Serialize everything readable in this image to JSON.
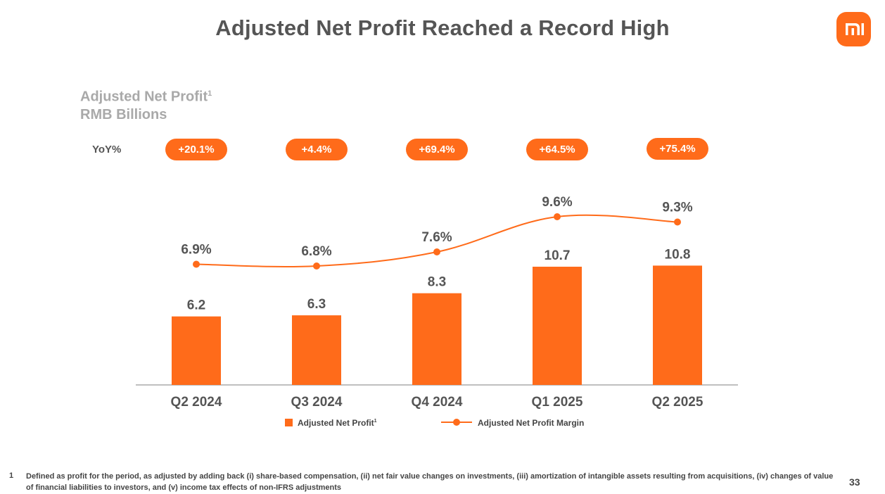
{
  "title": "Adjusted Net Profit Reached a Record High",
  "logo_text": "mi",
  "subtitle": {
    "line1": "Adjusted Net Profit",
    "line1_sup": "1",
    "line2": "RMB Billions"
  },
  "yoy_label": "YoY%",
  "colors": {
    "accent": "#ff6b1a",
    "axis": "#aaaaaa",
    "text": "#555555"
  },
  "chart_data": {
    "type": "bar",
    "title": "Adjusted Net Profit Reached a Record High",
    "ylabel": "RMB Billions",
    "categories": [
      "Q2 2024",
      "Q3 2024",
      "Q4 2024",
      "Q1 2025",
      "Q2 2025"
    ],
    "series": [
      {
        "name": "Adjusted Net Profit",
        "type": "bar",
        "values": [
          6.2,
          6.3,
          8.3,
          10.7,
          10.8
        ],
        "labels": [
          "6.2",
          "6.3",
          "8.3",
          "10.7",
          "10.8"
        ]
      },
      {
        "name": "Adjusted Net Profit Margin",
        "type": "line",
        "unit": "%",
        "values": [
          6.9,
          6.8,
          7.6,
          9.6,
          9.3
        ],
        "labels": [
          "6.9%",
          "6.8%",
          "7.6%",
          "9.6%",
          "9.3%"
        ]
      }
    ],
    "yoy": [
      "+20.1%",
      "+4.4%",
      "+69.4%",
      "+64.5%",
      "+75.4%"
    ],
    "ylim": [
      0,
      13
    ],
    "margin_ylim": [
      4,
      11
    ],
    "grid": false,
    "legend_position": "bottom"
  },
  "legend": {
    "bar_label": "Adjusted Net Profit",
    "bar_sup": "1",
    "line_label": "Adjusted Net Profit Margin"
  },
  "footnote": {
    "number": "1",
    "text": "Defined as profit for the period, as adjusted by adding back (i) share-based compensation, (ii) net fair value changes on investments, (iii) amortization of intangible assets resulting from acquisitions, (iv) changes of value of financial liabilities to investors, and (v) income tax effects of non-IFRS adjustments"
  },
  "page_number": "33"
}
